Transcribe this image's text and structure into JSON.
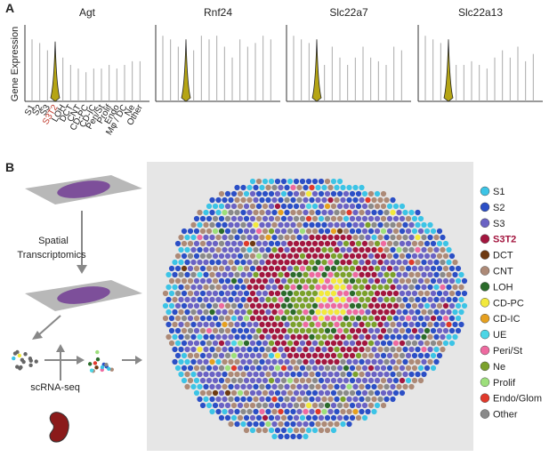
{
  "panel_a": {
    "label": "A",
    "y_axis_label": "Gene Expression",
    "categories": [
      "S1",
      "S2",
      "S3",
      "S3T2",
      "LOH",
      "DCT",
      "CNT",
      "CD-PC",
      "CD-IC",
      "Peri/St",
      "Prolif",
      "Endo",
      "Mφ / DC",
      "Ne",
      "Other"
    ],
    "highlight": "S3T2",
    "highlight_color": "#c0392b",
    "violin_color": "#b5a514",
    "panels": [
      {
        "gene": "Agt",
        "heights": [
          0.85,
          0.8,
          0.7,
          0.82,
          0.6,
          0.5,
          0.45,
          0.4,
          0.45,
          0.45,
          0.5,
          0.45,
          0.5,
          0.55,
          0.55
        ]
      },
      {
        "gene": "Rnf24",
        "heights": [
          0.9,
          0.85,
          0.75,
          0.85,
          0.7,
          0.9,
          0.85,
          0.9,
          0.75,
          0.6,
          0.85,
          0.75,
          0.8,
          0.9,
          0.85
        ]
      },
      {
        "gene": "Slc22a7",
        "heights": [
          0.9,
          0.85,
          0.8,
          0.85,
          0.5,
          0.75,
          0.6,
          0.5,
          0.6,
          0.75,
          0.6,
          0.55,
          0.5,
          0.75,
          0.7
        ]
      },
      {
        "gene": "Slc22a13",
        "heights": [
          0.9,
          0.85,
          0.8,
          0.85,
          0.5,
          0.5,
          0.55,
          0.5,
          0.45,
          0.6,
          0.7,
          0.6,
          0.75,
          0.55,
          0.65
        ]
      }
    ]
  },
  "panel_b": {
    "label": "B",
    "step_spatial": "Spatial\nTranscriptomics",
    "step_scrna": "scRNA-seq",
    "legend": [
      {
        "name": "S1",
        "color": "#3cc4e6"
      },
      {
        "name": "S2",
        "color": "#2b4fc6"
      },
      {
        "name": "S3",
        "color": "#6a62c4"
      },
      {
        "name": "S3T2",
        "color": "#a3163f"
      },
      {
        "name": "DCT",
        "color": "#6e3a12"
      },
      {
        "name": "CNT",
        "color": "#ad8a77"
      },
      {
        "name": "LOH",
        "color": "#2b6b2b"
      },
      {
        "name": "CD-PC",
        "color": "#f2e93c"
      },
      {
        "name": "CD-IC",
        "color": "#e6a01f"
      },
      {
        "name": "UE",
        "color": "#4cd6e6"
      },
      {
        "name": "Peri/St",
        "color": "#ee6aa0"
      },
      {
        "name": "Ne",
        "color": "#7ba12b"
      },
      {
        "name": "Prolif",
        "color": "#9ddf7b"
      },
      {
        "name": "Endo/Glom",
        "color": "#e0392b"
      },
      {
        "name": "Other",
        "color": "#8a8a8a"
      }
    ]
  }
}
